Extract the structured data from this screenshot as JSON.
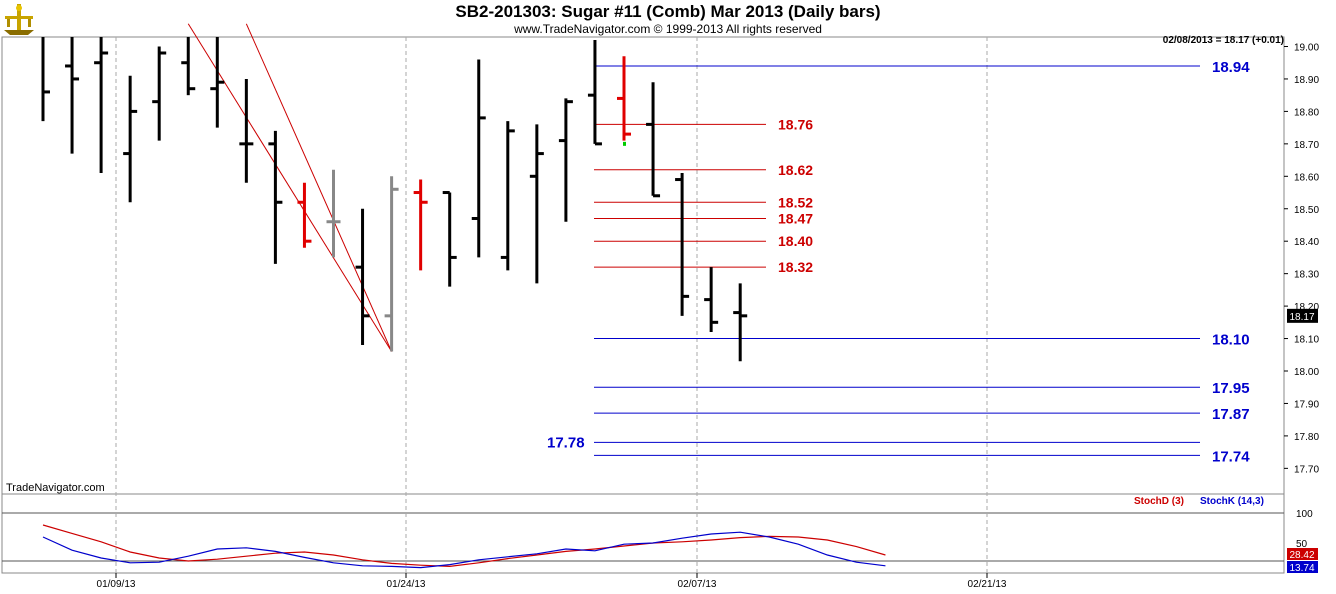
{
  "title": "SB2-201303:  Sugar #11 (Comb) Mar 2013  (Daily bars)",
  "copyright": "www.TradeNavigator.com © 1999-2013 All rights reserved",
  "watermark": "TradeNavigator.com",
  "last_bar_info": "02/08/2013 = 18.17 (+0.01)",
  "colors": {
    "price_black": "#000000",
    "price_red": "#e00000",
    "price_gray": "#888888",
    "level_red": "#cc0000",
    "level_blue": "#0000cc",
    "last_price_bg": "#000000"
  },
  "chart_data": [
    {
      "type": "ohlc",
      "title": "SB2-201303:  Sugar #11 (Comb) Mar 2013  (Daily bars)",
      "y_tick_labels": [
        "19.00",
        "18.90",
        "18.80",
        "18.70",
        "18.60",
        "18.50",
        "18.40",
        "18.30",
        "18.20",
        "18.10",
        "18.00",
        "17.90",
        "17.80",
        "17.70"
      ],
      "ylim": [
        17.66,
        19.07
      ],
      "x_tick_labels": [
        "01/09/13",
        "01/24/13",
        "02/07/13",
        "02/21/13"
      ],
      "grid": "dashed vertical",
      "last_price_label": "18.17",
      "bars": [
        {
          "date": "01/02/13",
          "open": null,
          "high": 19.07,
          "low": 18.77,
          "close": 18.86,
          "color": "black"
        },
        {
          "date": "01/03/13",
          "open": 18.94,
          "high": 19.07,
          "low": 18.67,
          "close": 18.9,
          "color": "black"
        },
        {
          "date": "01/04/13",
          "open": 18.95,
          "high": 19.07,
          "low": 18.61,
          "close": 18.98,
          "color": "black"
        },
        {
          "date": "01/07/13",
          "open": 18.67,
          "high": 18.91,
          "low": 18.52,
          "close": 18.8,
          "color": "black"
        },
        {
          "date": "01/08/13",
          "open": 18.83,
          "high": 19.0,
          "low": 18.71,
          "close": 18.98,
          "color": "black"
        },
        {
          "date": "01/09/13",
          "open": 18.95,
          "high": 19.07,
          "low": 18.85,
          "close": 18.87,
          "color": "black"
        },
        {
          "date": "01/10/13",
          "open": 18.87,
          "high": 19.07,
          "low": 18.75,
          "close": 18.89,
          "color": "black"
        },
        {
          "date": "01/11/13",
          "open": 18.7,
          "high": 18.9,
          "low": 18.58,
          "close": 18.7,
          "color": "black"
        },
        {
          "date": "01/14/13",
          "open": 18.7,
          "high": 18.74,
          "low": 18.33,
          "close": 18.52,
          "color": "black"
        },
        {
          "date": "01/15/13",
          "open": 18.52,
          "high": 18.58,
          "low": 18.38,
          "close": 18.4,
          "color": "red"
        },
        {
          "date": "01/16/13",
          "open": 18.46,
          "high": 18.62,
          "low": 18.35,
          "close": 18.46,
          "color": "gray"
        },
        {
          "date": "01/17/13",
          "open": 18.32,
          "high": 18.5,
          "low": 18.08,
          "close": 18.17,
          "color": "black"
        },
        {
          "date": "01/18/13",
          "open": 18.17,
          "high": 18.6,
          "low": 18.06,
          "close": 18.56,
          "color": "gray"
        },
        {
          "date": "01/22/13",
          "open": 18.55,
          "high": 18.59,
          "low": 18.31,
          "close": 18.52,
          "color": "red"
        },
        {
          "date": "01/23/13",
          "open": 18.55,
          "high": 18.55,
          "low": 18.26,
          "close": 18.35,
          "color": "black"
        },
        {
          "date": "01/24/13",
          "open": 18.47,
          "high": 18.96,
          "low": 18.35,
          "close": 18.78,
          "color": "black"
        },
        {
          "date": "01/25/13",
          "open": 18.35,
          "high": 18.77,
          "low": 18.31,
          "close": 18.74,
          "color": "black"
        },
        {
          "date": "01/28/13",
          "open": 18.6,
          "high": 18.76,
          "low": 18.27,
          "close": 18.67,
          "color": "black"
        },
        {
          "date": "01/29/13",
          "open": 18.71,
          "high": 18.84,
          "low": 18.46,
          "close": 18.83,
          "color": "black"
        },
        {
          "date": "01/30/13",
          "open": 18.85,
          "high": 19.02,
          "low": 18.7,
          "close": 18.7,
          "color": "black"
        },
        {
          "date": "01/31/13",
          "open": 18.84,
          "high": 18.97,
          "low": 18.71,
          "close": 18.73,
          "color": "red"
        },
        {
          "date": "02/01/13",
          "open": 18.76,
          "high": 18.89,
          "low": 18.54,
          "close": 18.54,
          "color": "black"
        },
        {
          "date": "02/04/13",
          "open": 18.59,
          "high": 18.61,
          "low": 18.17,
          "close": 18.23,
          "color": "black"
        },
        {
          "date": "02/05/13",
          "open": 18.22,
          "high": 18.32,
          "low": 18.12,
          "close": 18.15,
          "color": "black"
        },
        {
          "date": "02/06/13",
          "open": 18.18,
          "high": 18.27,
          "low": 18.03,
          "close": 18.17,
          "color": "black"
        }
      ],
      "trendlines": [
        {
          "from": {
            "date": "01/09/13",
            "price": 19.07
          },
          "to": {
            "date": "01/18/13",
            "price": 18.06
          }
        },
        {
          "from": {
            "date": "01/11/13",
            "price": 19.07
          },
          "to": {
            "date": "01/18/13",
            "price": 18.06
          }
        }
      ],
      "levels_red": [
        {
          "value": 18.76,
          "label": "18.76"
        },
        {
          "value": 18.62,
          "label": "18.62"
        },
        {
          "value": 18.52,
          "label": "18.52"
        },
        {
          "value": 18.47,
          "label": "18.47"
        },
        {
          "value": 18.4,
          "label": "18.40"
        },
        {
          "value": 18.32,
          "label": "18.32"
        }
      ],
      "levels_blue": [
        {
          "value": 18.94,
          "label": "18.94"
        },
        {
          "value": 18.1,
          "label": "18.10"
        },
        {
          "value": 17.95,
          "label": "17.95"
        },
        {
          "value": 17.87,
          "label": "17.87"
        },
        {
          "value": 17.78,
          "label": "17.78"
        },
        {
          "value": 17.74,
          "label": "17.74"
        }
      ]
    },
    {
      "type": "line",
      "series": [
        {
          "name": "StochD (3)",
          "color": "#cc0000",
          "values": [
            80,
            66,
            52,
            35,
            25,
            20,
            23,
            28,
            33,
            35,
            30,
            22,
            16,
            13,
            11,
            17,
            24,
            30,
            36,
            40,
            45,
            50,
            52,
            55,
            59,
            61,
            60,
            55,
            44,
            30
          ]
        },
        {
          "name": "StochK (14,3)",
          "color": "#0000cc",
          "values": [
            60,
            38,
            25,
            17,
            18,
            28,
            40,
            42,
            36,
            26,
            17,
            12,
            11,
            9,
            14,
            22,
            27,
            32,
            40,
            37,
            48,
            50,
            58,
            65,
            68,
            60,
            48,
            30,
            18,
            12
          ]
        }
      ],
      "series_start_date": "01/02/13",
      "y_tick_labels": [
        "100",
        "50"
      ],
      "ylim": [
        0,
        100
      ],
      "last_value_labels": {
        "StochD (3)": "28.42",
        "StochK (14,3)": "13.74"
      }
    }
  ]
}
